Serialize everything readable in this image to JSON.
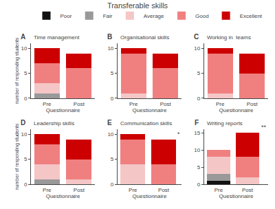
{
  "title": "Transferable skills",
  "legend": "top",
  "chart_data": [
    {
      "type": "bar",
      "label": "A",
      "title": "Time management",
      "categories": [
        "Pre",
        "Post"
      ],
      "xlabel": "Questionnaire",
      "ylabel": "number of responding students",
      "stacked": true,
      "grid": false,
      "ylim": [
        0,
        11
      ],
      "yticks": [
        0,
        5,
        10
      ],
      "series": [
        {
          "name": "Poor",
          "color": "#111111",
          "values": [
            0,
            0
          ]
        },
        {
          "name": "Fair",
          "color": "#999999",
          "values": [
            1,
            0
          ]
        },
        {
          "name": "Average",
          "color": "#f5c6c6",
          "values": [
            2,
            0
          ]
        },
        {
          "name": "Good",
          "color": "#f08080",
          "values": [
            4,
            6
          ]
        },
        {
          "name": "Excellent",
          "color": "#cc0000",
          "values": [
            3,
            3
          ]
        }
      ]
    },
    {
      "type": "bar",
      "label": "B",
      "title": "Organisational skills",
      "categories": [
        "Pre",
        "Post"
      ],
      "xlabel": "Questionnaire",
      "stacked": true,
      "grid": false,
      "ylim": [
        0,
        11
      ],
      "yticks": [
        0,
        5,
        10
      ],
      "series": [
        {
          "name": "Poor",
          "color": "#111111",
          "values": [
            0,
            0
          ]
        },
        {
          "name": "Fair",
          "color": "#999999",
          "values": [
            0,
            0
          ]
        },
        {
          "name": "Average",
          "color": "#f5c6c6",
          "values": [
            1,
            0
          ]
        },
        {
          "name": "Good",
          "color": "#f08080",
          "values": [
            8,
            6
          ]
        },
        {
          "name": "Excellent",
          "color": "#cc0000",
          "values": [
            1,
            3
          ]
        }
      ]
    },
    {
      "type": "bar",
      "label": "C",
      "title": "Working in  teams",
      "categories": [
        "Pre",
        "Post"
      ],
      "xlabel": "Questionnaire",
      "stacked": true,
      "grid": false,
      "ylim": [
        0,
        11
      ],
      "yticks": [
        0,
        5,
        10
      ],
      "series": [
        {
          "name": "Poor",
          "color": "#111111",
          "values": [
            0,
            0
          ]
        },
        {
          "name": "Fair",
          "color": "#999999",
          "values": [
            0,
            0
          ]
        },
        {
          "name": "Average",
          "color": "#f5c6c6",
          "values": [
            1,
            0
          ]
        },
        {
          "name": "Good",
          "color": "#f08080",
          "values": [
            8,
            5
          ]
        },
        {
          "name": "Excellent",
          "color": "#cc0000",
          "values": [
            1,
            4
          ]
        }
      ]
    },
    {
      "type": "bar",
      "label": "D",
      "title": "Leadership skills",
      "categories": [
        "Pre",
        "Post"
      ],
      "xlabel": "Questionnaire",
      "ylabel": "number of responding students",
      "stacked": true,
      "grid": false,
      "ylim": [
        0,
        11
      ],
      "yticks": [
        0,
        5,
        10
      ],
      "series": [
        {
          "name": "Poor",
          "color": "#111111",
          "values": [
            0,
            0
          ]
        },
        {
          "name": "Fair",
          "color": "#999999",
          "values": [
            1,
            0
          ]
        },
        {
          "name": "Average",
          "color": "#f5c6c6",
          "values": [
            3,
            1
          ]
        },
        {
          "name": "Good",
          "color": "#f08080",
          "values": [
            4,
            4
          ]
        },
        {
          "name": "Excellent",
          "color": "#cc0000",
          "values": [
            2,
            4
          ]
        }
      ]
    },
    {
      "type": "bar",
      "label": "E",
      "title": "Communication skills",
      "categories": [
        "Pre",
        "Post"
      ],
      "xlabel": "Questionnaire",
      "stacked": true,
      "grid": false,
      "annotation": "*",
      "ylim": [
        0,
        11
      ],
      "yticks": [
        0,
        5,
        10
      ],
      "series": [
        {
          "name": "Poor",
          "color": "#111111",
          "values": [
            0,
            0
          ]
        },
        {
          "name": "Fair",
          "color": "#999999",
          "values": [
            0,
            0
          ]
        },
        {
          "name": "Average",
          "color": "#f5c6c6",
          "values": [
            4,
            0
          ]
        },
        {
          "name": "Good",
          "color": "#f08080",
          "values": [
            5,
            4
          ]
        },
        {
          "name": "Excellent",
          "color": "#cc0000",
          "values": [
            1,
            5
          ]
        }
      ]
    },
    {
      "type": "bar",
      "label": "F",
      "title": "Writing reports",
      "categories": [
        "Pre",
        "Post"
      ],
      "xlabel": "Questionnaire",
      "stacked": true,
      "grid": false,
      "annotation": "**",
      "ylim": [
        0,
        16
      ],
      "yticks": [
        0,
        5,
        10,
        15
      ],
      "series": [
        {
          "name": "Poor",
          "color": "#111111",
          "values": [
            1,
            0
          ]
        },
        {
          "name": "Fair",
          "color": "#999999",
          "values": [
            2,
            0
          ]
        },
        {
          "name": "Average",
          "color": "#f5c6c6",
          "values": [
            5,
            2
          ]
        },
        {
          "name": "Good",
          "color": "#f08080",
          "values": [
            2,
            6
          ]
        },
        {
          "name": "Excellent",
          "color": "#cc0000",
          "values": [
            0,
            7
          ]
        }
      ]
    }
  ]
}
